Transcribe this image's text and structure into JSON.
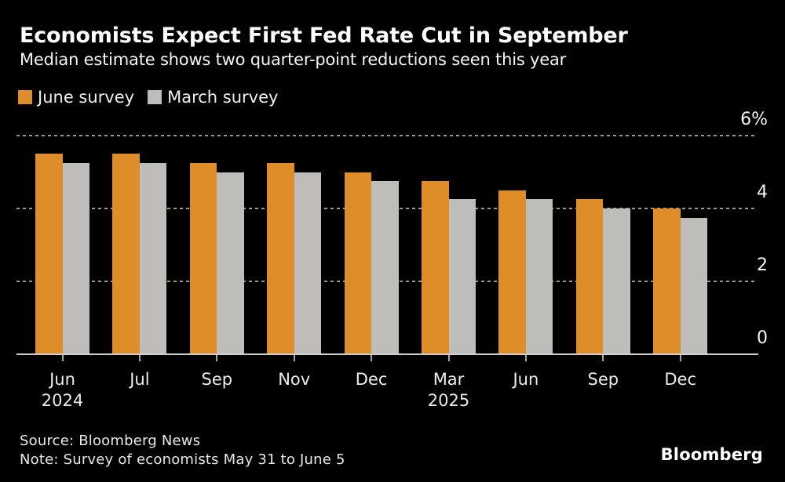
{
  "header": {
    "title": "Economists Expect First Fed Rate Cut in September",
    "subtitle": "Median estimate shows two quarter-point reductions seen this year"
  },
  "legend": {
    "items": [
      {
        "label": "June survey",
        "color": "#de8d28"
      },
      {
        "label": "March survey",
        "color": "#bfbdba"
      }
    ]
  },
  "chart_data": {
    "type": "bar",
    "title": "Economists Expect First Fed Rate Cut in September",
    "subtitle": "Median estimate shows two quarter-point reductions seen this year",
    "categories": [
      "Jun",
      "Jul",
      "Sep",
      "Nov",
      "Dec",
      "Mar",
      "Jun",
      "Sep",
      "Dec"
    ],
    "year_labels": [
      {
        "index": 0,
        "label": "2024"
      },
      {
        "index": 5,
        "label": "2025"
      }
    ],
    "series": [
      {
        "name": "June survey",
        "color": "#de8d28",
        "values": [
          5.5,
          5.5,
          5.25,
          5.25,
          5.0,
          4.75,
          4.5,
          4.25,
          4.0
        ]
      },
      {
        "name": "March survey",
        "color": "#bfbdba",
        "values": [
          5.25,
          5.25,
          5.0,
          5.0,
          4.75,
          4.25,
          4.25,
          4.0,
          3.75
        ]
      }
    ],
    "ylabel": "%",
    "ylim": [
      0,
      6
    ],
    "yticks": [
      {
        "value": 6,
        "label": "6%"
      },
      {
        "value": 4,
        "label": "4"
      },
      {
        "value": 2,
        "label": "2"
      },
      {
        "value": 0,
        "label": "0"
      }
    ],
    "grid": "horizontal-dotted",
    "legend_position": "top-left"
  },
  "footer": {
    "source": "Source: Bloomberg News",
    "note": "Note: Survey of economists May 31 to June 5",
    "logo": "Bloomberg"
  },
  "colors": {
    "background": "#000000",
    "june_survey": "#de8d28",
    "march_survey": "#bfbdba",
    "gridline": "#979797",
    "baseline": "#cfcfcf",
    "text": "#ffffff"
  }
}
